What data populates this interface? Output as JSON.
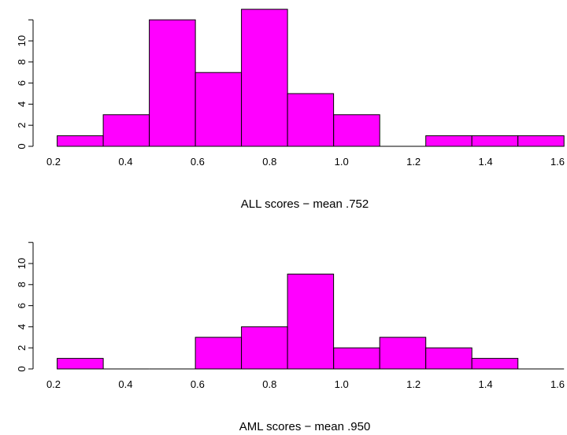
{
  "colors": {
    "bar_fill": "#ff00ff",
    "bar_stroke": "#000000",
    "background": "#ffffff"
  },
  "chart_data": [
    {
      "type": "bar",
      "title": "",
      "xlabel": "ALL scores − mean .752",
      "ylabel": "",
      "bin_edges": [
        0.21,
        0.338,
        0.466,
        0.594,
        0.722,
        0.85,
        0.978,
        1.106,
        1.234,
        1.362,
        1.49,
        1.618
      ],
      "values": [
        1,
        3,
        12,
        7,
        13,
        5,
        3,
        0,
        1,
        1,
        1
      ],
      "xticks": [
        "0.2",
        "0.4",
        "0.6",
        "0.8",
        "1.0",
        "1.2",
        "1.4",
        "1.6"
      ],
      "yticks": [
        "0",
        "2",
        "4",
        "6",
        "8",
        "10"
      ],
      "xlim": [
        0.2,
        1.62
      ],
      "ylim": [
        0,
        13
      ],
      "grid": false,
      "legend": "none"
    },
    {
      "type": "bar",
      "title": "",
      "xlabel": "AML scores − mean .950",
      "ylabel": "",
      "bin_edges": [
        0.21,
        0.338,
        0.466,
        0.594,
        0.722,
        0.85,
        0.978,
        1.106,
        1.234,
        1.362,
        1.49,
        1.618
      ],
      "values": [
        1,
        0,
        0,
        3,
        4,
        9,
        2,
        3,
        2,
        1,
        0
      ],
      "xticks": [
        "0.2",
        "0.4",
        "0.6",
        "0.8",
        "1.0",
        "1.2",
        "1.4",
        "1.6"
      ],
      "yticks": [
        "0",
        "2",
        "4",
        "6",
        "8",
        "10"
      ],
      "xlim": [
        0.2,
        1.62
      ],
      "ylim": [
        0,
        12
      ],
      "grid": false,
      "legend": "none"
    }
  ]
}
